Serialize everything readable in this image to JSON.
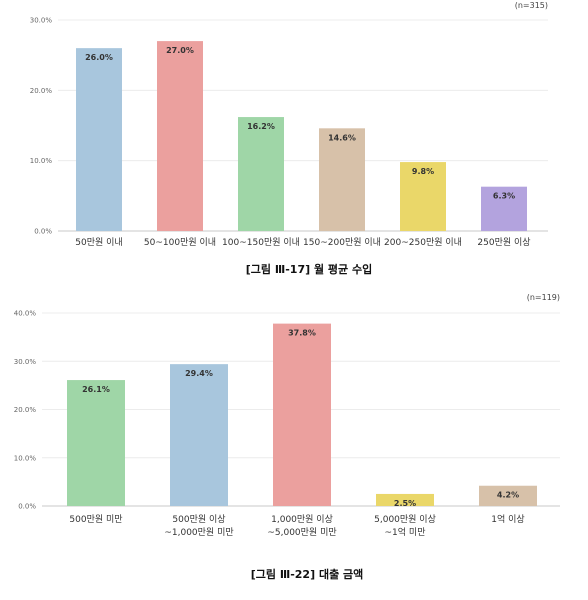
{
  "chart_data": [
    {
      "type": "bar",
      "title": "[그림 Ⅲ-17] 월 평균 수입",
      "note": "(n=315)",
      "categories": [
        "50만원 이내",
        "50~100만원 이내",
        "100~150만원 이내",
        "150~200만원 이내",
        "200~250만원 이내",
        "250만원 이상"
      ],
      "values": [
        26.0,
        27.0,
        16.2,
        14.6,
        9.8,
        6.3
      ],
      "value_labels": [
        "26.0%",
        "27.0%",
        "16.2%",
        "14.6%",
        "9.8%",
        "6.3%"
      ],
      "colors": [
        "#a8c6dd",
        "#eba09e",
        "#9fd6a7",
        "#d7c1a9",
        "#ead769",
        "#b3a3de"
      ],
      "ylim": [
        0,
        30
      ],
      "yticks": [
        0,
        10,
        20,
        30
      ],
      "ytick_labels": [
        "0.0%",
        "10.0%",
        "20.0%",
        "30.0%"
      ],
      "grid": true,
      "legend": "none"
    },
    {
      "type": "bar",
      "title": "[그림 Ⅲ-22] 대출 금액",
      "note": "(n=119)",
      "categories": [
        [
          "500만원 미만"
        ],
        [
          "500만원 이상",
          "~1,000만원 미만"
        ],
        [
          "1,000만원 이상",
          "~5,000만원 미만"
        ],
        [
          "5,000만원 이상",
          "~1억 미만"
        ],
        [
          "1억 이상"
        ]
      ],
      "values": [
        26.1,
        29.4,
        37.8,
        2.5,
        4.2
      ],
      "value_labels": [
        "26.1%",
        "29.4%",
        "37.8%",
        "2.5%",
        "4.2%"
      ],
      "colors": [
        "#9fd6a7",
        "#a8c6dd",
        "#eba09e",
        "#ead769",
        "#d7c1a9"
      ],
      "ylim": [
        0,
        40
      ],
      "yticks": [
        0,
        10,
        20,
        30,
        40
      ],
      "ytick_labels": [
        "0.0%",
        "10.0%",
        "20.0%",
        "30.0%",
        "40.0%"
      ],
      "grid": true,
      "legend": "none"
    }
  ]
}
